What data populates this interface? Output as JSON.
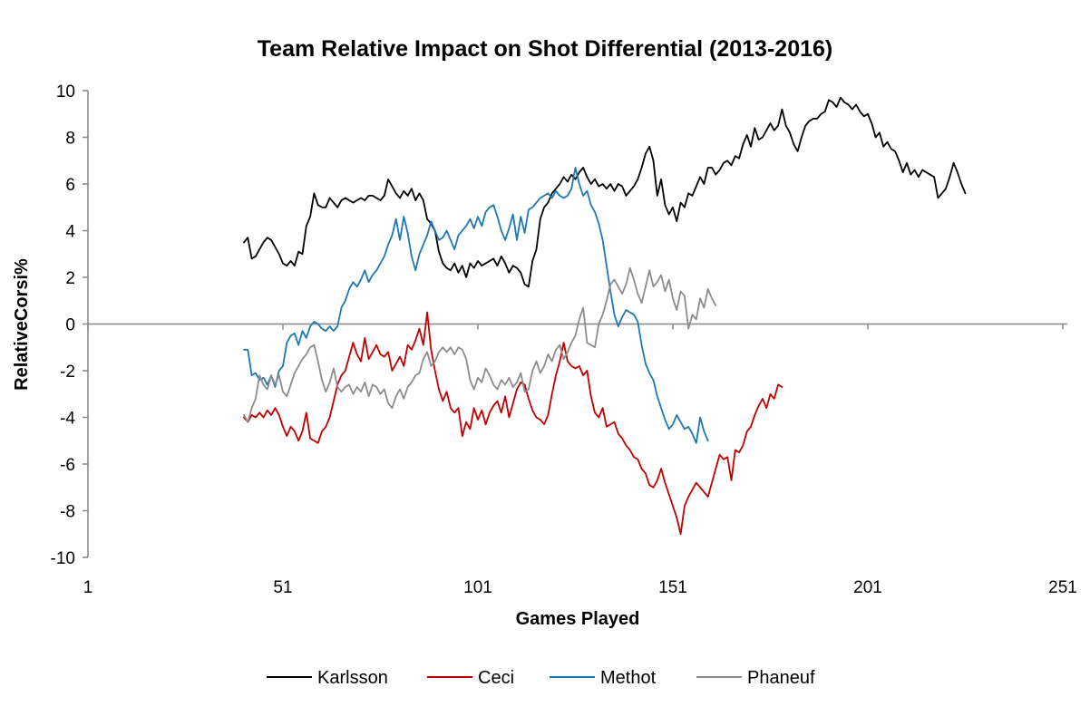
{
  "chart_data": {
    "type": "line",
    "title": "Team Relative Impact on Shot Differential (2013-2016)",
    "xlabel": "Games Played",
    "ylabel": "RelativeCorsi%",
    "xlim": [
      1,
      251
    ],
    "ylim": [
      -10,
      10
    ],
    "x_ticks": [
      "1",
      "51",
      "101",
      "151",
      "201",
      "251"
    ],
    "y_ticks": [
      "-10",
      "-8",
      "-6",
      "-4",
      "-2",
      "0",
      "2",
      "4",
      "6",
      "8",
      "10"
    ],
    "grid": false,
    "legend_position": "bottom",
    "series": [
      {
        "name": "Karlsson",
        "color": "#000000",
        "x_start": 41,
        "values": [
          3.5,
          3.7,
          2.8,
          2.9,
          3.2,
          3.5,
          3.7,
          3.6,
          3.3,
          3.0,
          2.6,
          2.5,
          2.7,
          2.5,
          3.1,
          3.0,
          4.2,
          4.6,
          5.6,
          5.1,
          5.0,
          5.0,
          5.4,
          5.2,
          5.0,
          5.3,
          5.4,
          5.3,
          5.2,
          5.3,
          5.4,
          5.3,
          5.5,
          5.5,
          5.4,
          5.3,
          5.5,
          6.2,
          5.9,
          5.6,
          5.4,
          5.7,
          5.5,
          5.8,
          5.3,
          5.6,
          5.3,
          4.5,
          4.3,
          4.0,
          3.1,
          2.6,
          2.4,
          2.3,
          2.6,
          2.2,
          2.5,
          2.0,
          2.6,
          2.4,
          2.7,
          2.5,
          2.6,
          2.7,
          2.8,
          2.5,
          2.9,
          2.6,
          2.2,
          2.5,
          2.4,
          2.2,
          1.7,
          1.6,
          2.7,
          3.2,
          4.5,
          5.0,
          5.2,
          5.6,
          5.8,
          6.0,
          6.3,
          6.1,
          6.4,
          6.2,
          6.5,
          6.7,
          6.3,
          6.0,
          6.2,
          5.9,
          6.0,
          5.8,
          6.0,
          5.7,
          6.0,
          5.9,
          5.5,
          5.7,
          5.9,
          6.2,
          6.7,
          7.3,
          7.6,
          7.0,
          5.5,
          6.2,
          5.1,
          4.7,
          5.0,
          4.4,
          5.2,
          5.0,
          5.6,
          5.5,
          5.9,
          6.3,
          6.0,
          6.7,
          6.7,
          6.4,
          6.6,
          6.9,
          7.0,
          6.8,
          7.2,
          7.1,
          7.7,
          8.1,
          7.6,
          8.4,
          7.9,
          8.0,
          8.3,
          8.6,
          8.3,
          8.5,
          9.2,
          8.5,
          8.2,
          7.7,
          7.4,
          8.0,
          8.5,
          8.7,
          8.8,
          8.8,
          9.0,
          9.1,
          9.6,
          9.5,
          9.3,
          9.7,
          9.5,
          9.4,
          9.2,
          9.4,
          9.1,
          8.9,
          9.0,
          8.6,
          8.0,
          8.2,
          7.6,
          7.8,
          7.5,
          7.4,
          7.0,
          6.5,
          6.9,
          6.4,
          6.6,
          6.3,
          6.6,
          6.5,
          6.4,
          6.3,
          5.4,
          5.6,
          5.8,
          6.3,
          6.9,
          6.5,
          6.0,
          5.6
        ]
      },
      {
        "name": "Ceci",
        "color": "#c00000",
        "x_start": 41,
        "values": [
          -4.0,
          -4.2,
          -3.9,
          -4.0,
          -3.8,
          -4.0,
          -3.7,
          -3.9,
          -3.6,
          -3.9,
          -4.4,
          -4.8,
          -4.4,
          -4.6,
          -5.0,
          -4.6,
          -3.8,
          -4.9,
          -5.0,
          -5.1,
          -4.6,
          -4.4,
          -4.0,
          -3.3,
          -2.6,
          -2.2,
          -2.0,
          -1.4,
          -0.8,
          -1.3,
          -1.6,
          -0.6,
          -1.5,
          -1.2,
          -0.9,
          -1.3,
          -1.4,
          -1.2,
          -2.0,
          -1.7,
          -1.4,
          -1.8,
          -0.9,
          -1.1,
          -0.7,
          -0.2,
          -0.9,
          0.5,
          -1.1,
          -2.0,
          -2.8,
          -3.3,
          -2.9,
          -3.6,
          -3.8,
          -3.6,
          -4.8,
          -4.2,
          -4.5,
          -3.6,
          -4.1,
          -3.7,
          -4.3,
          -3.8,
          -3.5,
          -3.3,
          -3.8,
          -3.1,
          -4.0,
          -3.4,
          -2.8,
          -2.5,
          -2.6,
          -3.2,
          -3.7,
          -4.0,
          -4.1,
          -4.3,
          -3.9,
          -3.0,
          -2.2,
          -1.6,
          -0.8,
          -1.6,
          -1.8,
          -1.9,
          -1.8,
          -2.2,
          -2.0,
          -3.1,
          -3.8,
          -4.0,
          -3.6,
          -4.4,
          -4.3,
          -4.2,
          -4.7,
          -4.9,
          -5.2,
          -5.4,
          -5.7,
          -5.8,
          -6.2,
          -6.4,
          -6.9,
          -7.0,
          -6.7,
          -6.2,
          -6.8,
          -7.3,
          -7.8,
          -8.3,
          -9.0,
          -7.8,
          -7.4,
          -7.1,
          -6.8,
          -7.0,
          -7.2,
          -7.4,
          -6.8,
          -6.2,
          -5.6,
          -5.8,
          -5.7,
          -6.7,
          -5.4,
          -5.5,
          -5.2,
          -4.6,
          -4.4,
          -3.9,
          -3.5,
          -3.2,
          -3.6,
          -3.0,
          -3.2,
          -2.6,
          -2.7
        ]
      },
      {
        "name": "Methot",
        "color": "#1f77b4",
        "x_start": 41,
        "values": [
          -1.1,
          -1.1,
          -2.2,
          -2.1,
          -2.4,
          -2.3,
          -2.6,
          -2.2,
          -2.7,
          -2.0,
          -1.8,
          -0.8,
          -0.5,
          -0.4,
          -0.9,
          -0.3,
          -0.6,
          -0.1,
          0.1,
          0.0,
          -0.2,
          -0.3,
          -0.1,
          -0.3,
          -0.1,
          0.7,
          1.0,
          1.5,
          1.8,
          1.6,
          1.9,
          2.3,
          1.8,
          2.1,
          2.3,
          2.6,
          2.9,
          3.4,
          3.8,
          4.5,
          3.6,
          4.6,
          3.9,
          2.9,
          2.3,
          3.0,
          3.4,
          3.8,
          4.4,
          4.0,
          3.6,
          3.7,
          4.0,
          3.6,
          3.2,
          3.8,
          4.0,
          4.2,
          4.5,
          4.1,
          4.6,
          4.2,
          4.8,
          5.0,
          5.1,
          4.6,
          4.0,
          3.6,
          4.1,
          4.7,
          3.6,
          4.6,
          3.9,
          4.9,
          5.0,
          5.2,
          5.4,
          5.5,
          5.6,
          5.4,
          5.7,
          5.5,
          5.4,
          5.5,
          5.8,
          6.7,
          6.0,
          5.5,
          5.7,
          5.1,
          4.8,
          4.3,
          3.6,
          2.5,
          1.4,
          0.4,
          -0.1,
          0.3,
          0.6,
          0.5,
          0.4,
          0.1,
          -0.9,
          -1.7,
          -2.1,
          -2.4,
          -3.1,
          -3.6,
          -4.1,
          -4.5,
          -4.3,
          -3.9,
          -4.2,
          -4.5,
          -4.4,
          -4.7,
          -5.1,
          -4.0,
          -4.6,
          -5.0
        ]
      },
      {
        "name": "Phaneuf",
        "color": "#8c8c8c",
        "x_start": 41,
        "values": [
          -3.9,
          -4.2,
          -3.6,
          -3.2,
          -2.2,
          -2.6,
          -2.8,
          -2.2,
          -2.6,
          -2.2,
          -2.9,
          -3.1,
          -2.6,
          -2.1,
          -1.8,
          -1.5,
          -1.3,
          -1.0,
          -0.9,
          -1.6,
          -2.4,
          -2.9,
          -2.5,
          -1.9,
          -2.7,
          -2.9,
          -2.7,
          -2.6,
          -3.0,
          -2.7,
          -2.9,
          -2.5,
          -3.1,
          -2.6,
          -2.7,
          -3.0,
          -2.8,
          -3.4,
          -3.6,
          -3.1,
          -2.8,
          -3.2,
          -2.7,
          -2.5,
          -2.2,
          -2.1,
          -1.5,
          -1.2,
          -1.8,
          -1.6,
          -1.2,
          -1.0,
          -1.2,
          -1.0,
          -1.3,
          -1.0,
          -1.1,
          -1.5,
          -2.4,
          -2.8,
          -2.3,
          -2.5,
          -1.9,
          -2.2,
          -2.6,
          -2.8,
          -2.4,
          -2.6,
          -2.3,
          -2.7,
          -2.5,
          -2.1,
          -2.9,
          -2.8,
          -2.0,
          -1.6,
          -2.1,
          -1.8,
          -1.3,
          -1.6,
          -1.1,
          -0.9,
          -1.5,
          -1.2,
          -0.8,
          -0.5,
          0.2,
          0.7,
          -0.8,
          -0.9,
          -1.0,
          0.0,
          0.4,
          1.0,
          1.7,
          1.9,
          1.6,
          1.3,
          1.7,
          2.4,
          1.9,
          1.3,
          0.9,
          1.6,
          2.3,
          1.6,
          1.8,
          2.1,
          1.4,
          1.9,
          1.1,
          0.6,
          1.4,
          1.2,
          -0.2,
          0.4,
          0.2,
          1.1,
          0.7,
          1.5,
          1.1,
          0.8
        ]
      }
    ]
  }
}
